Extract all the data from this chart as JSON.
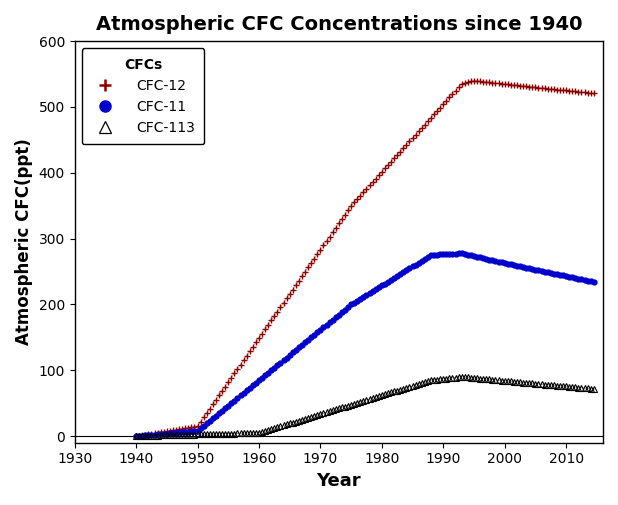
{
  "title": "Atmospheric CFC Concentrations since 1940",
  "xlabel": "Year",
  "ylabel": "Atmospheric CFC(ppt)",
  "xlim": [
    1930,
    2016
  ],
  "ylim": [
    -10,
    600
  ],
  "xticks": [
    1930,
    1940,
    1950,
    1960,
    1970,
    1980,
    1990,
    2000,
    2010
  ],
  "yticks": [
    0,
    100,
    200,
    300,
    400,
    500,
    600
  ],
  "cfc12_color": "#8B0000",
  "cfc11_color": "#0000CC",
  "cfc113_color": "#000000",
  "legend_title": "CFCs",
  "legend_labels": [
    "CFC-12",
    "CFC-11",
    "CFC-113"
  ],
  "figsize": [
    6.18,
    5.05
  ],
  "dpi": 100
}
